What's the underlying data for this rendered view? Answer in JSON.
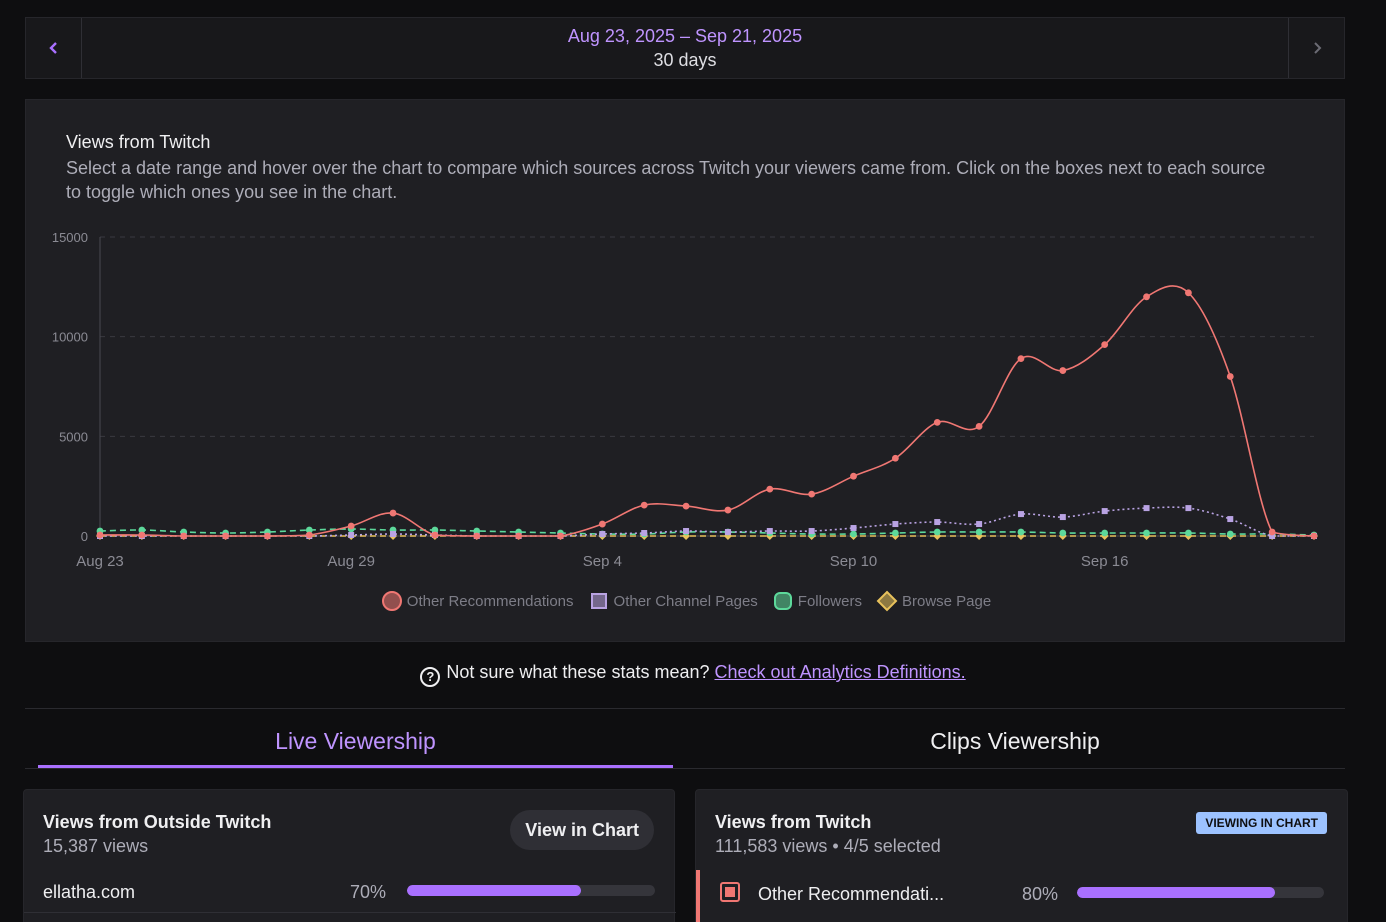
{
  "date_range": {
    "dates": "Aug 23, 2025 – Sep 21, 2025",
    "days": "30 days",
    "prev_icon": "chevron-left-icon",
    "next_icon": "chevron-right-icon"
  },
  "chart_panel": {
    "title": "Views from Twitch",
    "description": "Select a date range and hover over the chart to compare which sources across Twitch your viewers came from. Click on the boxes next to each source to toggle which ones you see in the chart."
  },
  "chart_data": {
    "type": "line",
    "x": [
      "Aug 23",
      "Aug 24",
      "Aug 25",
      "Aug 26",
      "Aug 27",
      "Aug 28",
      "Aug 29",
      "Aug 30",
      "Aug 31",
      "Sep 1",
      "Sep 2",
      "Sep 3",
      "Sep 4",
      "Sep 5",
      "Sep 6",
      "Sep 7",
      "Sep 8",
      "Sep 9",
      "Sep 10",
      "Sep 11",
      "Sep 12",
      "Sep 13",
      "Sep 14",
      "Sep 15",
      "Sep 16",
      "Sep 17",
      "Sep 18",
      "Sep 19",
      "Sep 20",
      "Sep 21"
    ],
    "x_tick_labels": [
      "Aug 23",
      "Aug 29",
      "Sep 4",
      "Sep 10",
      "Sep 16"
    ],
    "ylim": [
      0,
      15000
    ],
    "y_ticks": [
      "0",
      "5000",
      "10000",
      "15000"
    ],
    "grid": true,
    "legend": "bottom-center",
    "series": [
      {
        "name": "Other Recommendations",
        "color": "#f07773",
        "marker": "circle",
        "values": [
          50,
          50,
          0,
          0,
          0,
          50,
          500,
          1150,
          50,
          0,
          0,
          0,
          600,
          1550,
          1500,
          1300,
          2350,
          2100,
          3000,
          3900,
          5700,
          5500,
          8900,
          8300,
          9600,
          12000,
          12200,
          8000,
          200,
          0
        ]
      },
      {
        "name": "Other Channel Pages",
        "color": "#b9a3e3",
        "marker": "square",
        "values": [
          0,
          0,
          0,
          0,
          0,
          0,
          50,
          100,
          50,
          0,
          0,
          0,
          100,
          150,
          250,
          200,
          250,
          250,
          400,
          600,
          700,
          600,
          1100,
          950,
          1250,
          1400,
          1400,
          850,
          0,
          0
        ]
      },
      {
        "name": "Followers",
        "color": "#5dd99b",
        "marker": "circle",
        "values": [
          250,
          300,
          200,
          150,
          200,
          300,
          350,
          300,
          300,
          250,
          200,
          150,
          100,
          100,
          200,
          200,
          150,
          100,
          100,
          150,
          200,
          200,
          200,
          150,
          150,
          150,
          150,
          100,
          100,
          50
        ]
      },
      {
        "name": "Browse Page",
        "color": "#e8c25c",
        "marker": "diamond",
        "values": [
          0,
          0,
          0,
          0,
          0,
          0,
          0,
          0,
          0,
          0,
          0,
          0,
          0,
          0,
          0,
          0,
          0,
          0,
          0,
          0,
          0,
          0,
          0,
          0,
          0,
          0,
          0,
          0,
          0,
          0
        ]
      }
    ]
  },
  "help": {
    "text": "Not sure what these stats mean?",
    "link": "Check out Analytics Definitions.",
    "icon": "question-circle-icon"
  },
  "tabs": {
    "live": "Live Viewership",
    "clips": "Clips Viewership"
  },
  "outside_card": {
    "title": "Views from Outside Twitch",
    "views": "15,387 views",
    "button": "View in Chart",
    "rows": [
      {
        "label": "ellatha.com",
        "percent": "70%",
        "fill": 0.7
      }
    ]
  },
  "twitch_card": {
    "title": "Views from Twitch",
    "views": "111,583 views",
    "separator": "•",
    "selected": "4/5 selected",
    "badge": "VIEWING IN CHART",
    "rows": [
      {
        "label": "Other Recommendati...",
        "percent": "80%",
        "fill": 0.8
      }
    ]
  }
}
